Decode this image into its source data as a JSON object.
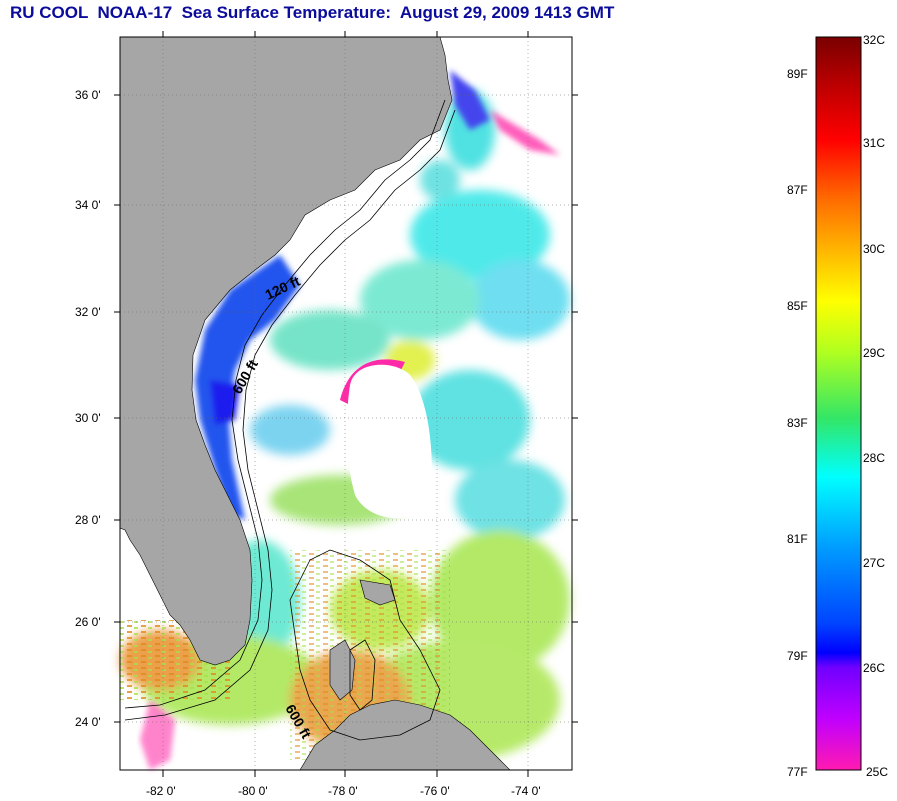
{
  "title": "RU COOL  NOAA-17  Sea Surface Temperature:  August 29, 2009 1413 GMT",
  "map": {
    "lat_labels": [
      "36 0'",
      "34 0'",
      "32 0'",
      "30 0'",
      "28 0'",
      "26 0'",
      "24 0'"
    ],
    "lon_labels": [
      "-82 0'",
      "-80 0'",
      "-78 0'",
      "-76 0'",
      "-74 0'"
    ],
    "contour_labels": [
      "120 ft",
      "600 ft",
      "600 ft"
    ],
    "land_color": "#a6a6a6",
    "ocean_color": "#ffffff"
  },
  "colorbar": {
    "celsius_labels": [
      "32C",
      "31C",
      "30C",
      "29C",
      "28C",
      "27C",
      "26C",
      "25C"
    ],
    "fahrenheit_labels": [
      "89F",
      "87F",
      "85F",
      "83F",
      "81F",
      "79F",
      "77F"
    ],
    "colors_top_to_bottom": [
      "#7a0000",
      "#ff0000",
      "#ff8000",
      "#ffff00",
      "#33e633",
      "#00ffff",
      "#0066ff",
      "#0000ff",
      "#b000ff",
      "#ff1ab0"
    ]
  }
}
